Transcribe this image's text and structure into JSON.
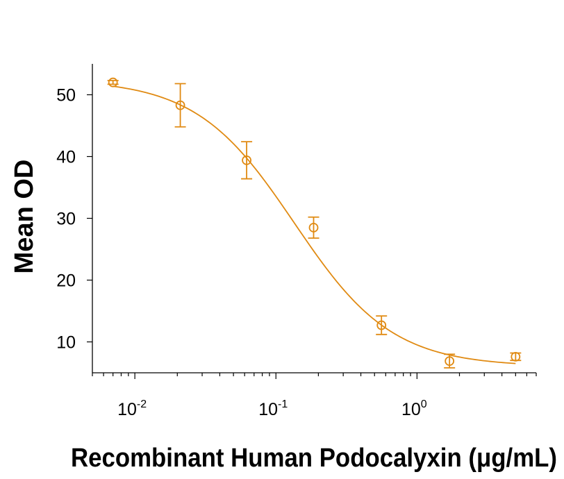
{
  "chart_data": {
    "type": "scatter",
    "title": "",
    "xlabel": "Recombinant Human Podocalyxin (μg/mL)",
    "ylabel": "Mean OD",
    "x_scale": "log",
    "xlim": [
      0.005,
      7
    ],
    "ylim": [
      5,
      55
    ],
    "x_ticks": [
      {
        "value": 0.01,
        "base": "10",
        "exp": "-2"
      },
      {
        "value": 0.1,
        "base": "10",
        "exp": "-1"
      },
      {
        "value": 1,
        "base": "10",
        "exp": "0"
      }
    ],
    "y_ticks": [
      {
        "value": 10,
        "label": "10"
      },
      {
        "value": 20,
        "label": "20"
      },
      {
        "value": 30,
        "label": "30"
      },
      {
        "value": 40,
        "label": "40"
      },
      {
        "value": 50,
        "label": "50"
      }
    ],
    "grid": false,
    "legend": "none",
    "series": [
      {
        "color": "#e08a12",
        "marker": "open-circle",
        "x": [
          0.007,
          0.021,
          0.062,
          0.185,
          0.56,
          1.7,
          5.0
        ],
        "y": [
          52.0,
          48.3,
          39.4,
          28.5,
          12.7,
          6.9,
          7.6
        ],
        "error": [
          0.3,
          3.5,
          3.0,
          1.7,
          1.5,
          1.1,
          0.6
        ],
        "fit": {
          "model": "4PL",
          "top": 52.5,
          "bottom": 6.0,
          "ec50": 0.135,
          "hill": 1.25,
          "x_range": [
            0.007,
            5.0
          ]
        }
      }
    ]
  }
}
